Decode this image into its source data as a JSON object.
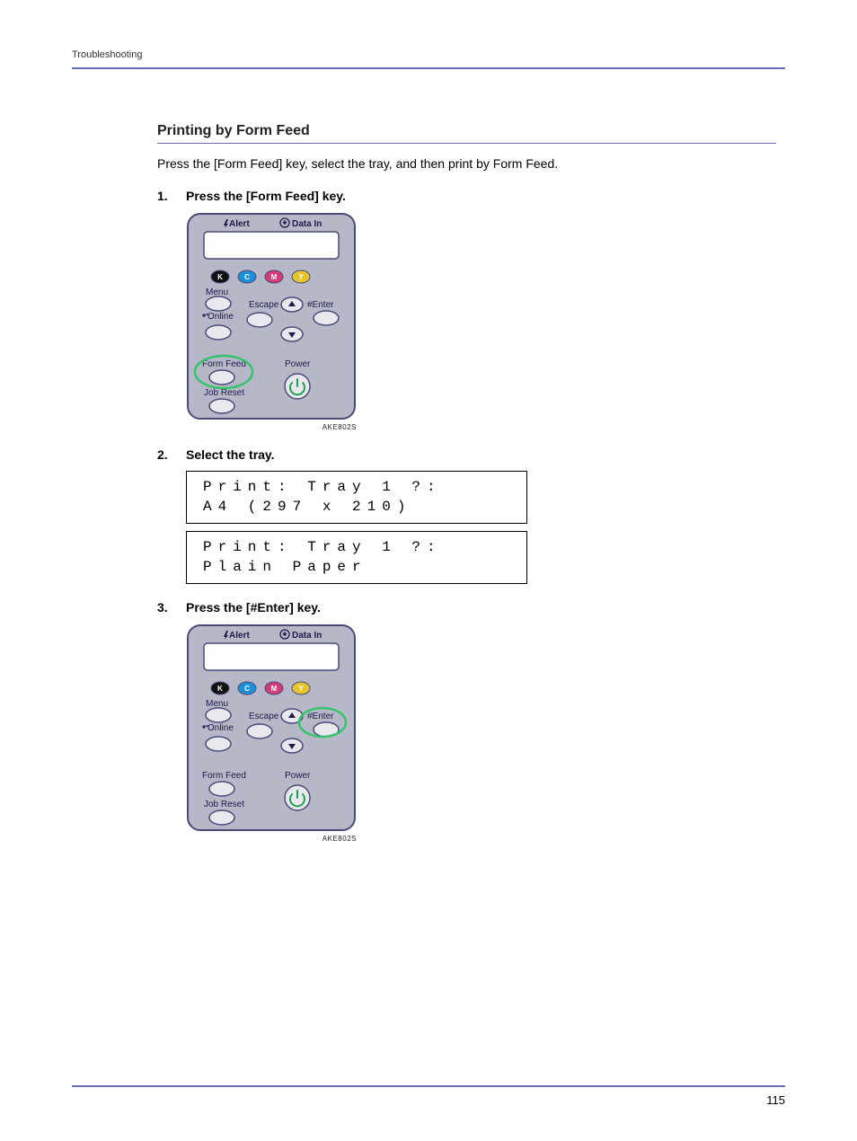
{
  "header": {
    "section": "Troubleshooting"
  },
  "section": {
    "title": "Printing by Form Feed",
    "intro": "Press the [Form Feed] key, select the tray, and then print by Form Feed."
  },
  "steps": [
    {
      "title": "Press the [Form Feed] key."
    },
    {
      "title": "Select the tray."
    },
    {
      "title": "Press the [#Enter] key."
    }
  ],
  "lcd": {
    "box1": {
      "line1": "Print: Tray 1 ?:",
      "line2": "A4 (297 x 210)"
    },
    "box2": {
      "line1": "Print: Tray 1 ?:",
      "line2": "Plain Paper"
    }
  },
  "panel": {
    "alert": "Alert",
    "datain": "Data In",
    "menu": "Menu",
    "escape": "Escape",
    "enter": "#Enter",
    "online": "Online",
    "formfeed": "Form Feed",
    "jobreset": "Job Reset",
    "power": "Power",
    "imgcode": "AKE802S",
    "colors": {
      "body": "#b7b8c7",
      "stroke": "#4a4a78",
      "screen": "#ffffff",
      "text": "#1a1a4a",
      "highlight_stroke": "#35c46a",
      "highlight_fill": "none",
      "btn_fill": "#e8e8ee",
      "power_green": "#1aa34a",
      "K": "#111111",
      "C": "#1e90d8",
      "M": "#d23c78",
      "Y": "#e6c62e"
    }
  },
  "page_number": "115"
}
